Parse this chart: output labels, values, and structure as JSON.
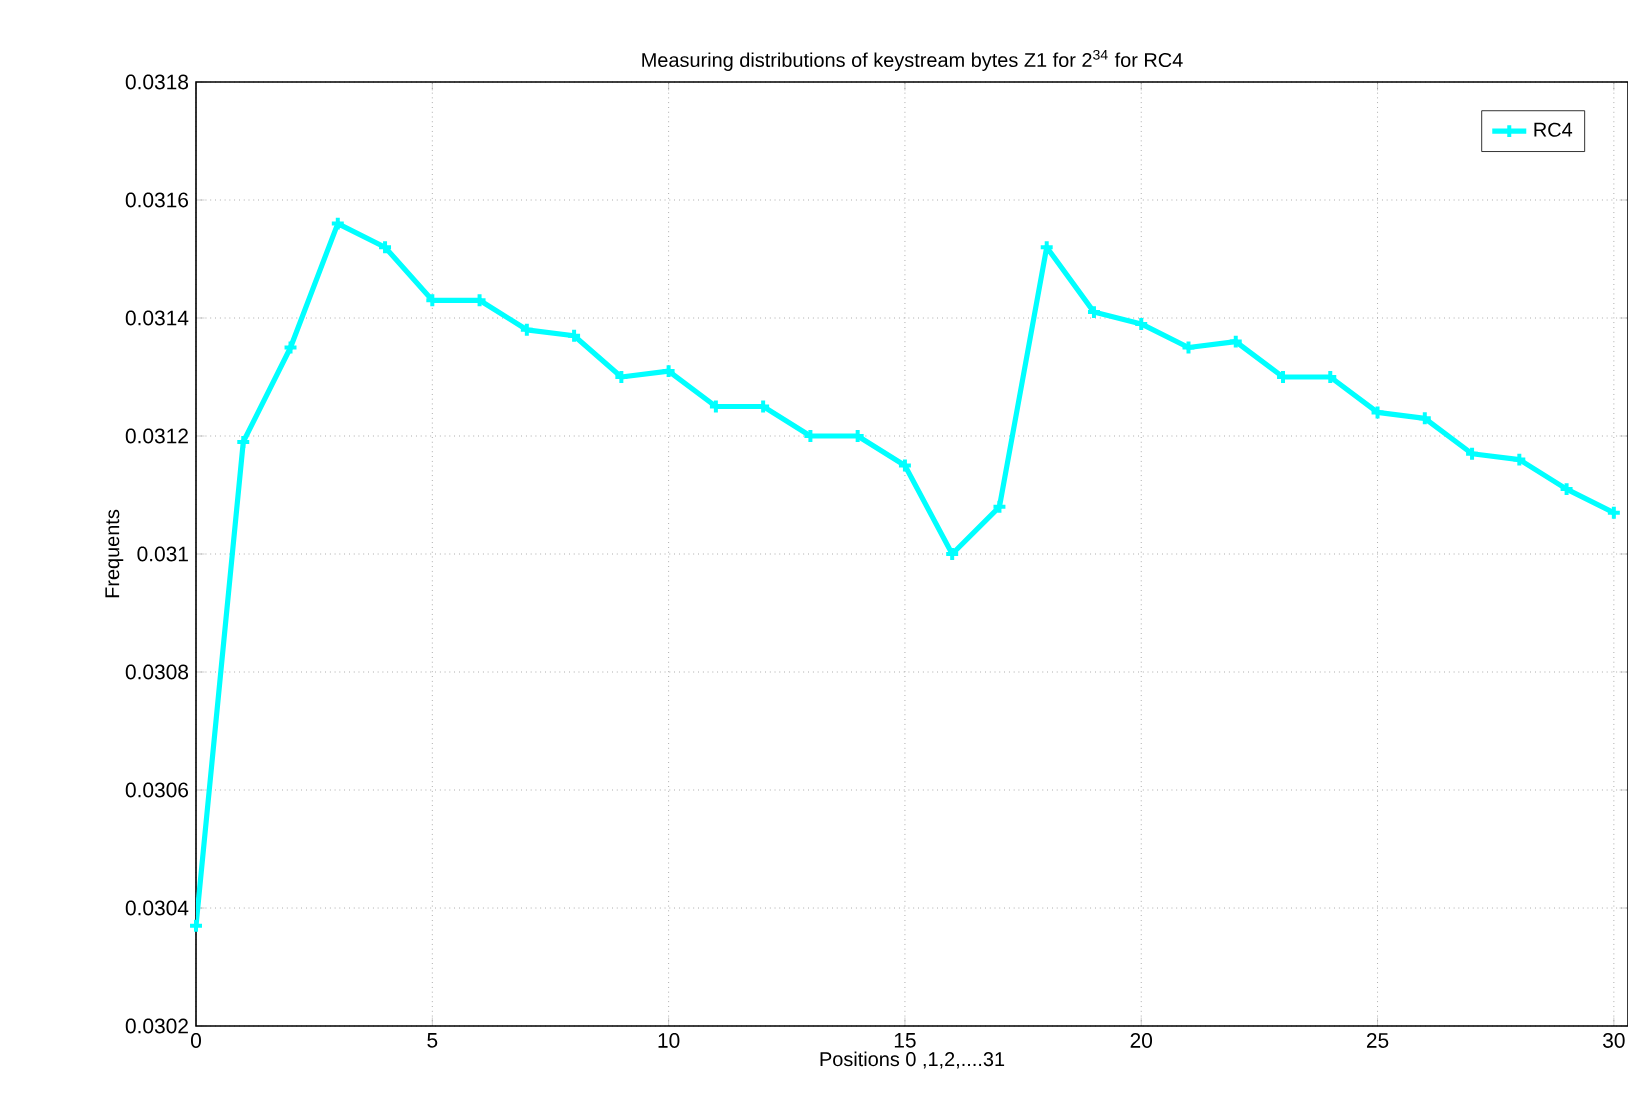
{
  "chart_data": {
    "type": "line",
    "title": "Measuring distributions of keystream bytes Z1 for 2$^{34}$ for RC4",
    "xlabel": "Positions 0 ,1,2,....31",
    "ylabel": "Frequents",
    "x": [
      0,
      1,
      2,
      3,
      4,
      5,
      6,
      7,
      8,
      9,
      10,
      11,
      12,
      13,
      14,
      15,
      16,
      17,
      18,
      19,
      20,
      21,
      22,
      23,
      24,
      25,
      26,
      27,
      28,
      29,
      30
    ],
    "series": [
      {
        "name": "RC4",
        "color": "#00ffff",
        "values": [
          0.03037,
          0.03119,
          0.03135,
          0.03156,
          0.03152,
          0.03143,
          0.03143,
          0.03138,
          0.03137,
          0.0313,
          0.03131,
          0.03125,
          0.03125,
          0.0312,
          0.0312,
          0.03115,
          0.031,
          0.03108,
          0.03152,
          0.03141,
          0.03139,
          0.03135,
          0.03136,
          0.0313,
          0.0313,
          0.03124,
          0.03123,
          0.03117,
          0.03116,
          0.03111,
          0.03107
        ]
      }
    ],
    "xlim": [
      0,
      30.3
    ],
    "ylim": [
      0.0302,
      0.0318
    ],
    "xticks": [
      0,
      5,
      10,
      15,
      20,
      25,
      30
    ],
    "yticks": [
      0.0302,
      0.0304,
      0.0306,
      0.0308,
      0.031,
      0.0312,
      0.0314,
      0.0316,
      0.0318
    ],
    "grid": true,
    "legend": "top right",
    "marker": "cross",
    "line_style": "solid"
  }
}
